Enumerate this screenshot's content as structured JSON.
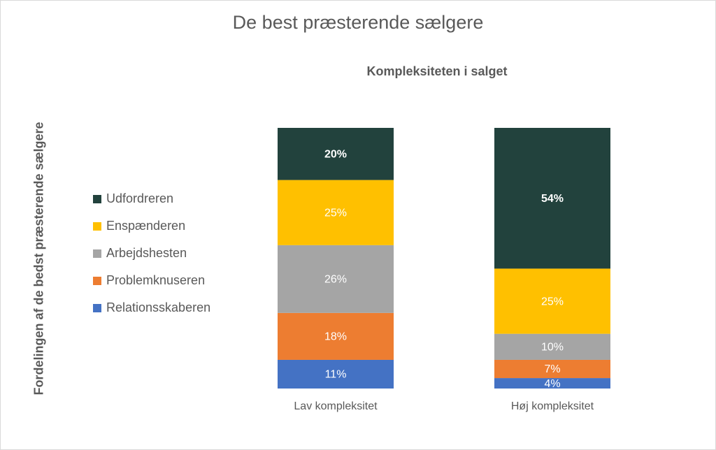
{
  "chart_data": {
    "type": "bar",
    "stacked": true,
    "title": "De best præsterende sælgere",
    "subtitle": "Kompleksiteten i salget",
    "xlabel": "",
    "ylabel": "Fordelingen af de bedst præsterende sælgere",
    "ylim": [
      0,
      100
    ],
    "grid": false,
    "legend_position": "left",
    "categories": [
      "Lav kompleksitet",
      "Høj kompleksitet"
    ],
    "series": [
      {
        "name": "Relationsskaberen",
        "color": "#4472c4",
        "values": [
          11,
          4
        ],
        "labels": [
          "11%",
          "4%"
        ],
        "bold": false
      },
      {
        "name": "Problemknuseren",
        "color": "#ed7d31",
        "values": [
          18,
          7
        ],
        "labels": [
          "18%",
          "7%"
        ],
        "bold": false
      },
      {
        "name": "Arbejdshesten",
        "color": "#a5a5a5",
        "values": [
          26,
          10
        ],
        "labels": [
          "26%",
          "10%"
        ],
        "bold": false
      },
      {
        "name": "Enspænderen",
        "color": "#ffc000",
        "values": [
          25,
          25
        ],
        "labels": [
          "25%",
          "25%"
        ],
        "bold": false
      },
      {
        "name": "Udfordreren",
        "color": "#22423d",
        "values": [
          20,
          54
        ],
        "labels": [
          "20%",
          "54%"
        ],
        "bold": true
      }
    ],
    "legend_order": [
      "Udfordreren",
      "Enspænderen",
      "Arbejdshesten",
      "Problemknuseren",
      "Relationsskaberen"
    ]
  }
}
